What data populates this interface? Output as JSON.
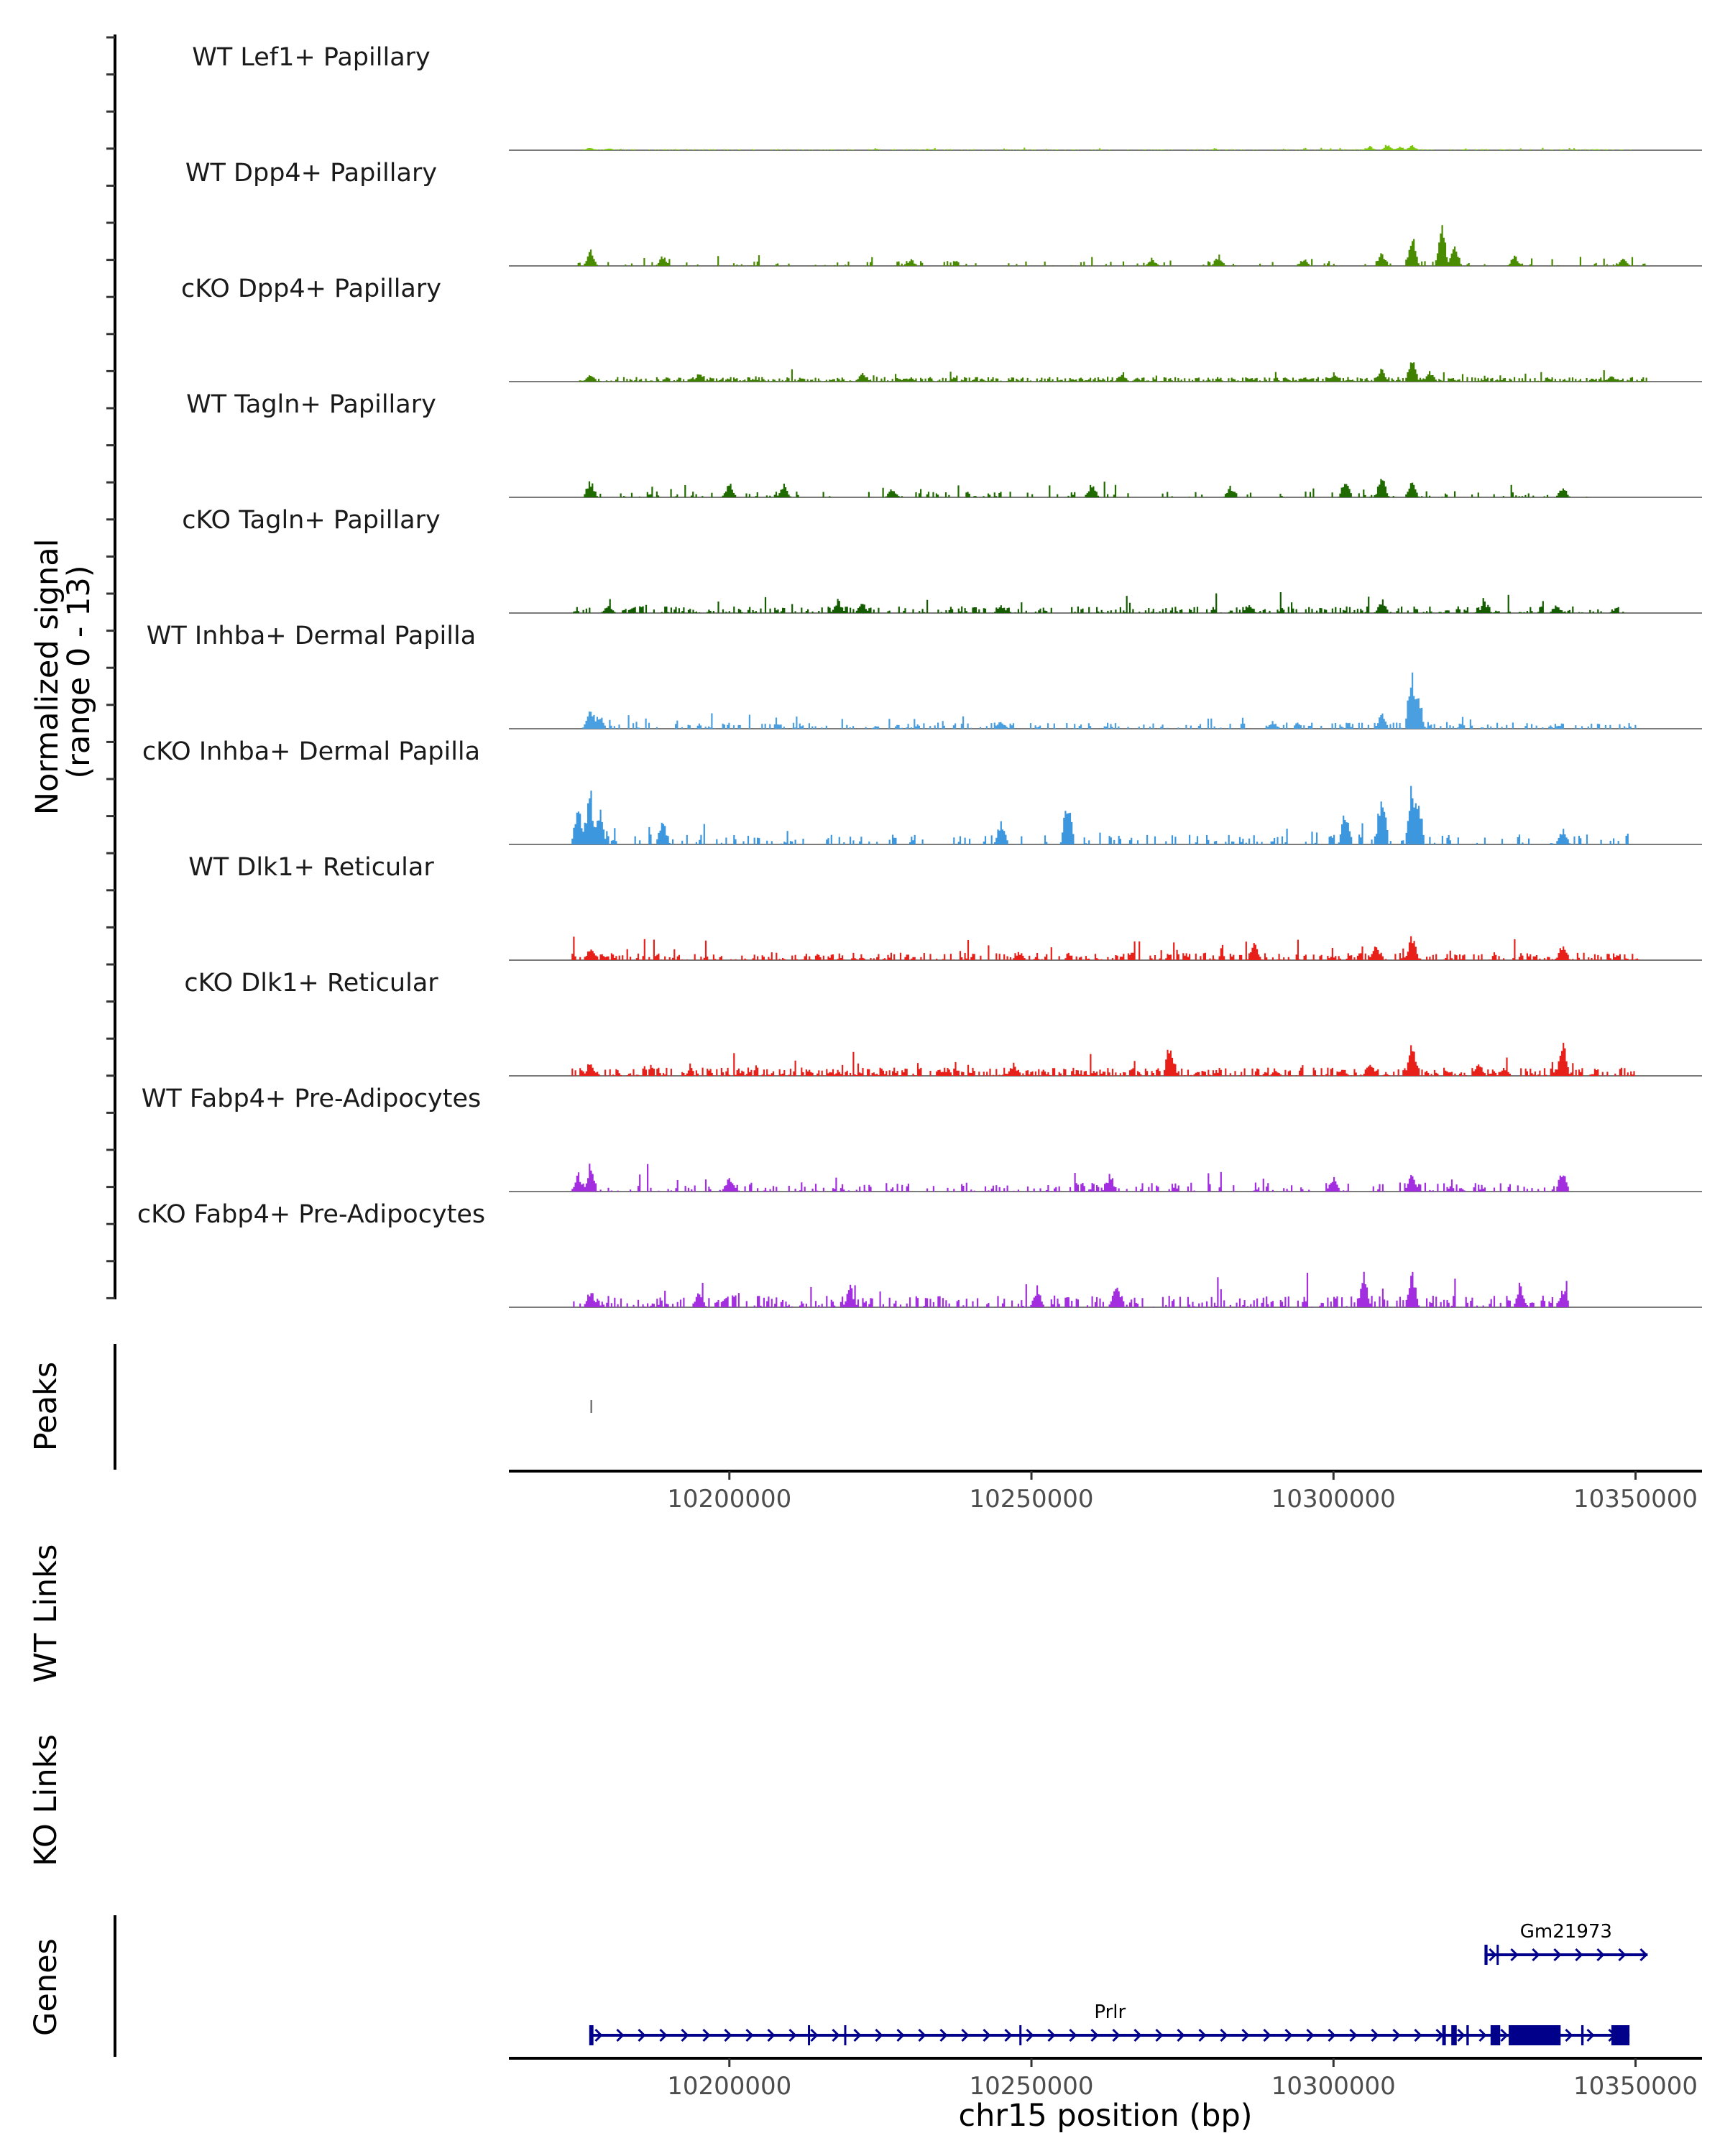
{
  "chart_data": {
    "type": "area",
    "genome": "chr15",
    "x_range": [
      10163500,
      10361000
    ],
    "x_ticks": [
      10200000,
      10250000,
      10300000,
      10350000
    ],
    "xlabel": "chr15 position (bp)",
    "coverage_ylabel_line1": "Normalized signal",
    "coverage_ylabel_line2": "(range 0 - 13)",
    "y_range": [
      0,
      13
    ],
    "tracks": [
      {
        "name": "WT Lef1+ Papillary",
        "color": "#7ac70c",
        "peaks": [
          [
            10177000,
            0.4
          ],
          [
            10180000,
            0.35
          ],
          [
            10306000,
            0.6
          ],
          [
            10309000,
            0.9
          ],
          [
            10313000,
            0.7
          ],
          [
            10311000,
            0.5
          ]
        ],
        "span": [
          10175000,
          10350000
        ],
        "noise": 0.12,
        "density": 0.5
      },
      {
        "name": "WT Dpp4+ Papillary",
        "color": "#4a8c00",
        "peaks": [
          [
            10177000,
            2.2
          ],
          [
            10189000,
            1.4
          ],
          [
            10230000,
            1.0
          ],
          [
            10270000,
            1.1
          ],
          [
            10281000,
            1.6
          ],
          [
            10295000,
            1.0
          ],
          [
            10308000,
            2.2
          ],
          [
            10313000,
            4.6
          ],
          [
            10318000,
            5.2
          ],
          [
            10320000,
            3.5
          ],
          [
            10330000,
            1.4
          ],
          [
            10348000,
            1.0
          ]
        ],
        "span": [
          10175000,
          10352000
        ],
        "noise": 0.6,
        "density": 0.14
      },
      {
        "name": "cKO Dpp4+ Papillary",
        "color": "#3f7f00",
        "peaks": [
          [
            10177000,
            1.0
          ],
          [
            10195000,
            1.1
          ],
          [
            10222000,
            1.2
          ],
          [
            10265000,
            1.4
          ],
          [
            10300000,
            1.2
          ],
          [
            10308000,
            1.8
          ],
          [
            10313000,
            3.5
          ],
          [
            10316000,
            1.5
          ],
          [
            10346000,
            1.0
          ]
        ],
        "span": [
          10175000,
          10352000
        ],
        "noise": 0.55,
        "density": 0.8
      },
      {
        "name": "WT Tagln+ Papillary",
        "color": "#1f6b00",
        "peaks": [
          [
            10177000,
            2.5
          ],
          [
            10200000,
            2.2
          ],
          [
            10209000,
            1.8
          ],
          [
            10227000,
            1.3
          ],
          [
            10260000,
            2.0
          ],
          [
            10283000,
            1.6
          ],
          [
            10302000,
            2.6
          ],
          [
            10308000,
            3.0
          ],
          [
            10313000,
            2.2
          ],
          [
            10338000,
            1.5
          ]
        ],
        "span": [
          10175000,
          10342000
        ],
        "noise": 0.7,
        "density": 0.18
      },
      {
        "name": "cKO Tagln+ Papillary",
        "color": "#135c00",
        "peaks": [
          [
            10180000,
            1.4
          ],
          [
            10218000,
            2.0
          ],
          [
            10222000,
            1.6
          ],
          [
            10245000,
            1.2
          ],
          [
            10286000,
            1.3
          ],
          [
            10308000,
            1.9
          ],
          [
            10325000,
            1.5
          ],
          [
            10337000,
            1.2
          ]
        ],
        "span": [
          10174000,
          10348000
        ],
        "noise": 0.8,
        "density": 0.45
      },
      {
        "name": "WT Inhba+ Dermal Papilla",
        "color": "#4a9fe0",
        "peaks": [
          [
            10177000,
            3.5
          ],
          [
            10178500,
            2.2
          ],
          [
            10245000,
            1.2
          ],
          [
            10290000,
            1.0
          ],
          [
            10308000,
            2.4
          ],
          [
            10313000,
            8.8
          ],
          [
            10314000,
            5.5
          ]
        ],
        "span": [
          10175000,
          10350000
        ],
        "noise": 0.75,
        "density": 0.35
      },
      {
        "name": "cKO Inhba+ Dermal Papilla",
        "color": "#3d97de",
        "peaks": [
          [
            10175000,
            6.0
          ],
          [
            10177000,
            7.5
          ],
          [
            10178500,
            5.0
          ],
          [
            10189000,
            3.8
          ],
          [
            10245000,
            3.5
          ],
          [
            10256000,
            6.8
          ],
          [
            10302000,
            5.5
          ],
          [
            10308000,
            8.5
          ],
          [
            10313000,
            10.5
          ],
          [
            10314000,
            7.5
          ],
          [
            10338000,
            2.5
          ]
        ],
        "span": [
          10174000,
          10349000
        ],
        "noise": 1.2,
        "density": 0.22
      },
      {
        "name": "WT Dlk1+ Reticular",
        "color": "#e8201a",
        "peaks": [
          [
            10177000,
            1.8
          ],
          [
            10248000,
            1.2
          ],
          [
            10287000,
            2.4
          ],
          [
            10307000,
            2.0
          ],
          [
            10313000,
            4.0
          ],
          [
            10338000,
            2.6
          ]
        ],
        "span": [
          10174000,
          10351000
        ],
        "noise": 0.9,
        "density": 0.55
      },
      {
        "name": "cKO Dlk1+ Reticular",
        "color": "#e8201a",
        "peaks": [
          [
            10177000,
            2.1
          ],
          [
            10247000,
            1.8
          ],
          [
            10273000,
            5.2
          ],
          [
            10306000,
            2.0
          ],
          [
            10313000,
            5.3
          ],
          [
            10324000,
            2.2
          ],
          [
            10338000,
            4.8
          ]
        ],
        "span": [
          10174000,
          10350000
        ],
        "noise": 1.0,
        "density": 0.6
      },
      {
        "name": "WT Fabp4+ Pre-Adipocytes",
        "color": "#a22ee0",
        "peaks": [
          [
            10175000,
            2.4
          ],
          [
            10177000,
            4.0
          ],
          [
            10200000,
            2.2
          ],
          [
            10263000,
            2.6
          ],
          [
            10300000,
            2.0
          ],
          [
            10313000,
            2.5
          ],
          [
            10338000,
            3.6
          ]
        ],
        "span": [
          10174000,
          10339000
        ],
        "noise": 1.1,
        "density": 0.3
      },
      {
        "name": "cKO Fabp4+ Pre-Adipocytes",
        "color": "#a22ee0",
        "peaks": [
          [
            10177000,
            2.6
          ],
          [
            10195000,
            2.7
          ],
          [
            10220000,
            3.2
          ],
          [
            10251000,
            2.8
          ],
          [
            10264000,
            3.4
          ],
          [
            10305000,
            4.6
          ],
          [
            10313000,
            5.8
          ],
          [
            10331000,
            2.8
          ],
          [
            10338000,
            2.8
          ]
        ],
        "span": [
          10174000,
          10339000
        ],
        "noise": 1.4,
        "density": 0.45
      }
    ],
    "peaks_track": {
      "label": "Peaks",
      "regions": [
        [
          10177000,
          10177300
        ]
      ]
    },
    "links_tracks": [
      {
        "label": "WT Links"
      },
      {
        "label": "KO Links"
      }
    ],
    "genes_label": "Genes",
    "genes": [
      {
        "name": "Prlr",
        "start": 10177000,
        "end": 10349000,
        "strand": "+",
        "exons": [
          [
            10176800,
            10177500
          ],
          [
            10213000,
            10213300
          ],
          [
            10219000,
            10219300
          ],
          [
            10248000,
            10248300
          ],
          [
            10318000,
            10318600
          ],
          [
            10319500,
            10320400
          ],
          [
            10322000,
            10322400
          ],
          [
            10326000,
            10327600
          ],
          [
            10329000,
            10337600
          ],
          [
            10341000,
            10341400
          ],
          [
            10346000,
            10349000
          ]
        ],
        "color": "#00008b"
      },
      {
        "name": "Gm21973",
        "start": 10325000,
        "end": 10352000,
        "strand": "+",
        "exons": [
          [
            10325000,
            10325500
          ],
          [
            10327000,
            10327300
          ]
        ],
        "color": "#00008b"
      }
    ]
  }
}
